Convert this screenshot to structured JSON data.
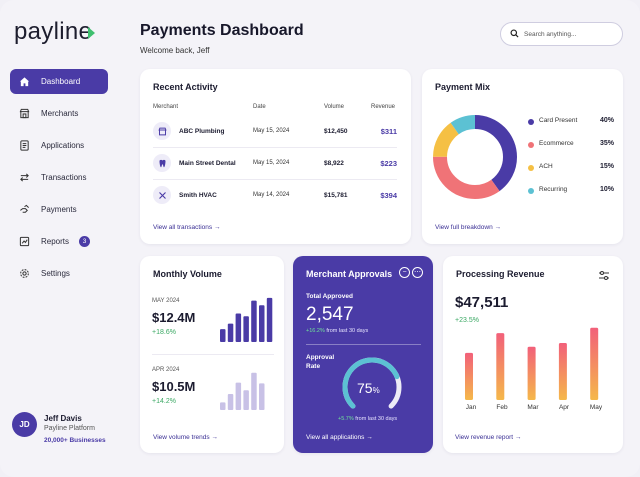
{
  "brand": {
    "name": "payline"
  },
  "header": {
    "title": "Payments Dashboard",
    "welcome": "Welcome back, Jeff",
    "search_placeholder": "Search anything..."
  },
  "sidebar": {
    "items": [
      {
        "label": "Dashboard",
        "icon": "home-icon",
        "active": true
      },
      {
        "label": "Merchants",
        "icon": "store-icon"
      },
      {
        "label": "Applications",
        "icon": "document-icon"
      },
      {
        "label": "Transactions",
        "icon": "transfer-icon"
      },
      {
        "label": "Payments",
        "icon": "payments-icon"
      },
      {
        "label": "Reports",
        "icon": "chart-icon",
        "badge": "3"
      },
      {
        "label": "Settings",
        "icon": "gear-icon"
      }
    ]
  },
  "user": {
    "initials": "JD",
    "name": "Jeff Davis",
    "org": "Payline Platform",
    "businesses": "20,000+ Businesses"
  },
  "recent_activity": {
    "title": "Recent Activity",
    "columns": [
      "Merchant",
      "Date",
      "Volume",
      "Revenue"
    ],
    "rows": [
      {
        "merchant": "ABC Plumbing",
        "date": "May 15, 2024",
        "volume": "$12,450",
        "revenue": "$311",
        "icon": "store-icon"
      },
      {
        "merchant": "Main Street Dental",
        "date": "May 15, 2024",
        "volume": "$8,922",
        "revenue": "$223",
        "icon": "tooth-icon"
      },
      {
        "merchant": "Smith HVAC",
        "date": "May 14, 2024",
        "volume": "$15,781",
        "revenue": "$394",
        "icon": "tools-icon"
      }
    ],
    "link": "View all transactions"
  },
  "payment_mix": {
    "title": "Payment Mix",
    "segments": [
      {
        "label": "Card Present",
        "percent": "40%",
        "value": 40,
        "color": "#4a3ba6"
      },
      {
        "label": "Ecommerce",
        "percent": "35%",
        "value": 35,
        "color": "#f07377"
      },
      {
        "label": "ACH",
        "percent": "15%",
        "value": 15,
        "color": "#f5c044"
      },
      {
        "label": "Recurring",
        "percent": "10%",
        "value": 10,
        "color": "#5cc1d3"
      }
    ],
    "link": "View full breakdown"
  },
  "monthly_volume": {
    "title": "Monthly Volume",
    "periods": [
      {
        "period": "MAY 2024",
        "value": "$12.4M",
        "change": "+18.6%",
        "bars": [
          0.28,
          0.4,
          0.62,
          0.56,
          0.9,
          0.8,
          0.96
        ],
        "color": "#4a3ba6"
      },
      {
        "period": "APR 2024",
        "value": "$10.5M",
        "change": "+14.2%",
        "bars": [
          0.2,
          0.42,
          0.72,
          0.52,
          0.98,
          0.7
        ],
        "color": "#c8c1e6"
      }
    ],
    "link": "View volume trends"
  },
  "merchant_approvals": {
    "title": "Merchant Approvals",
    "total_label": "Total Approved",
    "total_value": "2,547",
    "total_change": "+16.2%",
    "total_note": "from last 30 days",
    "rate_label_1": "Approval",
    "rate_label_2": "Rate",
    "rate_value": "75",
    "rate_unit": "%",
    "rate_fraction": 0.75,
    "rate_change": "+5.7%",
    "rate_note": "from last 30 days",
    "link": "View all applications"
  },
  "processing_revenue": {
    "title": "Processing Revenue",
    "value": "$47,511",
    "change": "+23.5%",
    "months": [
      "Jan",
      "Feb",
      "Mar",
      "Apr",
      "May"
    ],
    "bar_levels": [
      0.62,
      0.88,
      0.7,
      0.75,
      0.95
    ],
    "link": "View revenue report"
  },
  "colors": {
    "accent": "#4a3ba6",
    "positive": "#3aa863"
  }
}
